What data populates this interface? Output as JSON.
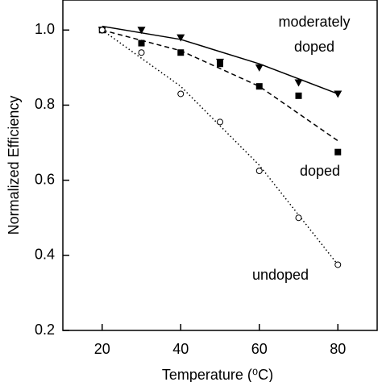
{
  "chart_data": {
    "type": "scatter",
    "x_label": "Temperature (⁰C)",
    "y_label": "Normalized Efficiency",
    "x": [
      20,
      30,
      40,
      50,
      60,
      70,
      80
    ],
    "fit_x": [
      20,
      40,
      60,
      80
    ],
    "xlim": [
      10,
      90
    ],
    "xticks": [
      20,
      40,
      60,
      80
    ],
    "ylim": [
      0.2,
      1.08
    ],
    "yticks": [
      {
        "value": 0.2,
        "label": "0.2"
      },
      {
        "value": 0.4,
        "label": "0.4"
      },
      {
        "value": 0.6,
        "label": "0.6"
      },
      {
        "value": 0.8,
        "label": "0.8"
      },
      {
        "value": 1.0,
        "label": "1.0"
      }
    ],
    "series": [
      {
        "label_lines": [
          "moderately",
          "doped"
        ],
        "marker": "triangle",
        "color": "#000000",
        "line_style": "solid",
        "values": [
          1.0,
          1.0,
          0.98,
          0.915,
          0.9,
          0.86,
          0.83
        ],
        "fit_values": [
          1.01,
          0.975,
          0.91,
          0.83
        ]
      },
      {
        "label_lines": [
          "doped"
        ],
        "marker": "square",
        "color": "#000000",
        "line_style": "dashed",
        "values": [
          1.0,
          0.965,
          0.94,
          0.91,
          0.85,
          0.825,
          0.675
        ],
        "fit_values": [
          1.0,
          0.945,
          0.85,
          0.705
        ]
      },
      {
        "label_lines": [
          "undoped"
        ],
        "marker": "circle",
        "color": "#000000",
        "line_style": "dotted",
        "values": [
          1.0,
          0.94,
          0.83,
          0.755,
          0.625,
          0.5,
          0.375
        ],
        "fit_values": [
          1.0,
          0.85,
          0.64,
          0.375
        ]
      }
    ]
  }
}
